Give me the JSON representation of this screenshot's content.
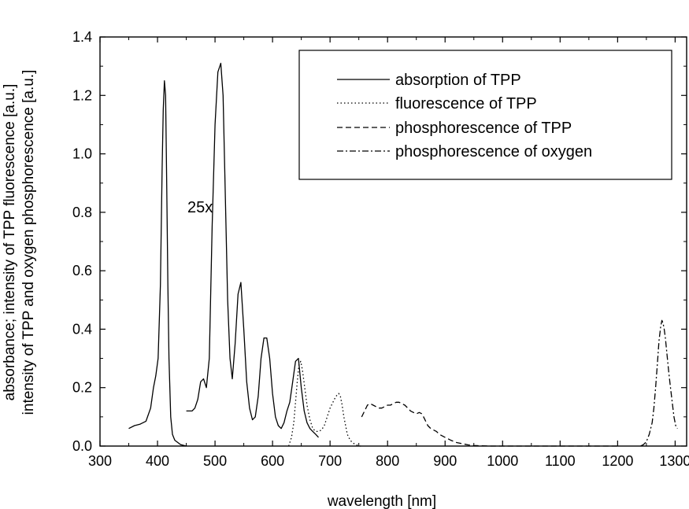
{
  "chart_data": {
    "type": "line",
    "xlabel": "wavelength [nm]",
    "ylabel_lines": [
      "absorbance; intensity of TPP fluorescence [a.u.]",
      "intensity of TPP and oxygen phosphorescence [a.u.]"
    ],
    "xlim": [
      300,
      1320
    ],
    "ylim": [
      0,
      1.4
    ],
    "x_ticks": [
      "300",
      "400",
      "500",
      "600",
      "700",
      "800",
      "900",
      "1000",
      "1100",
      "1200",
      "1300"
    ],
    "y_ticks": [
      "0.0",
      "0.2",
      "0.4",
      "0.6",
      "0.8",
      "1.0",
      "1.2",
      "1.4"
    ],
    "annotation": "25x",
    "grid": false,
    "legend_position": "top-right",
    "series": [
      {
        "name": "absorption of TPP",
        "style": "solid",
        "x": [
          350,
          360,
          370,
          380,
          388,
          393,
          397,
          401,
          405,
          408,
          410,
          412,
          414,
          416,
          418,
          420,
          423,
          426,
          430,
          440,
          450
        ],
        "y": [
          0.06,
          0.07,
          0.075,
          0.085,
          0.13,
          0.2,
          0.24,
          0.3,
          0.55,
          0.95,
          1.15,
          1.25,
          1.2,
          0.9,
          0.55,
          0.3,
          0.1,
          0.04,
          0.02,
          0.005,
          0.0
        ]
      },
      {
        "name": "absorption of TPP (25x)",
        "style": "solid",
        "x": [
          450,
          460,
          465,
          470,
          475,
          480,
          485,
          490,
          495,
          500,
          505,
          510,
          514,
          518,
          522,
          526,
          530,
          535,
          540,
          545,
          550,
          555,
          560,
          565,
          570,
          575,
          580,
          585,
          590,
          595,
          600,
          605,
          610,
          615,
          620,
          625,
          630,
          635,
          640,
          645,
          650,
          655,
          660,
          665,
          670,
          675,
          680
        ],
        "y": [
          0.12,
          0.12,
          0.13,
          0.16,
          0.22,
          0.23,
          0.2,
          0.3,
          0.75,
          1.1,
          1.28,
          1.31,
          1.2,
          0.85,
          0.5,
          0.3,
          0.23,
          0.35,
          0.52,
          0.56,
          0.4,
          0.22,
          0.13,
          0.09,
          0.1,
          0.17,
          0.3,
          0.37,
          0.37,
          0.3,
          0.18,
          0.1,
          0.07,
          0.06,
          0.08,
          0.12,
          0.15,
          0.22,
          0.29,
          0.3,
          0.2,
          0.12,
          0.08,
          0.06,
          0.05,
          0.04,
          0.03
        ]
      },
      {
        "name": "fluorescence of TPP",
        "style": "dotted",
        "x": [
          628,
          633,
          637,
          640,
          643,
          646,
          649,
          652,
          656,
          660,
          665,
          670,
          675,
          680,
          685,
          690,
          695,
          700,
          705,
          710,
          715,
          718,
          721,
          724,
          727,
          730,
          735,
          740,
          745,
          750,
          755
        ],
        "y": [
          0.0,
          0.03,
          0.08,
          0.15,
          0.22,
          0.28,
          0.29,
          0.26,
          0.2,
          0.14,
          0.09,
          0.06,
          0.05,
          0.05,
          0.055,
          0.07,
          0.1,
          0.13,
          0.15,
          0.17,
          0.18,
          0.17,
          0.14,
          0.1,
          0.07,
          0.04,
          0.02,
          0.01,
          0.005,
          0.0,
          0.0
        ]
      },
      {
        "name": "phosphorescence of TPP",
        "style": "dashed",
        "x": [
          755,
          760,
          765,
          770,
          775,
          780,
          785,
          790,
          795,
          800,
          805,
          810,
          815,
          820,
          825,
          830,
          835,
          840,
          845,
          850,
          855,
          860,
          865,
          870,
          875,
          880,
          885,
          890,
          900,
          910,
          920,
          930,
          940,
          950,
          960,
          980,
          1000,
          1050,
          1100,
          1150,
          1200
        ],
        "y": [
          0.1,
          0.12,
          0.14,
          0.145,
          0.14,
          0.135,
          0.13,
          0.13,
          0.135,
          0.14,
          0.14,
          0.145,
          0.15,
          0.15,
          0.145,
          0.14,
          0.13,
          0.12,
          0.115,
          0.11,
          0.115,
          0.11,
          0.09,
          0.07,
          0.06,
          0.055,
          0.05,
          0.04,
          0.03,
          0.02,
          0.012,
          0.008,
          0.004,
          0.002,
          0.001,
          0.0,
          0.0,
          0.0,
          0.0,
          0.0,
          0.0
        ]
      },
      {
        "name": "phosphorescence of oxygen",
        "style": "dashdot",
        "x": [
          1240,
          1245,
          1250,
          1255,
          1260,
          1263,
          1266,
          1269,
          1272,
          1275,
          1277,
          1279,
          1281,
          1283,
          1286,
          1289,
          1292,
          1295,
          1298,
          1301,
          1304
        ],
        "y": [
          0.0,
          0.005,
          0.015,
          0.04,
          0.08,
          0.13,
          0.2,
          0.28,
          0.36,
          0.41,
          0.43,
          0.42,
          0.4,
          0.37,
          0.31,
          0.25,
          0.2,
          0.15,
          0.1,
          0.07,
          0.06
        ]
      }
    ]
  }
}
